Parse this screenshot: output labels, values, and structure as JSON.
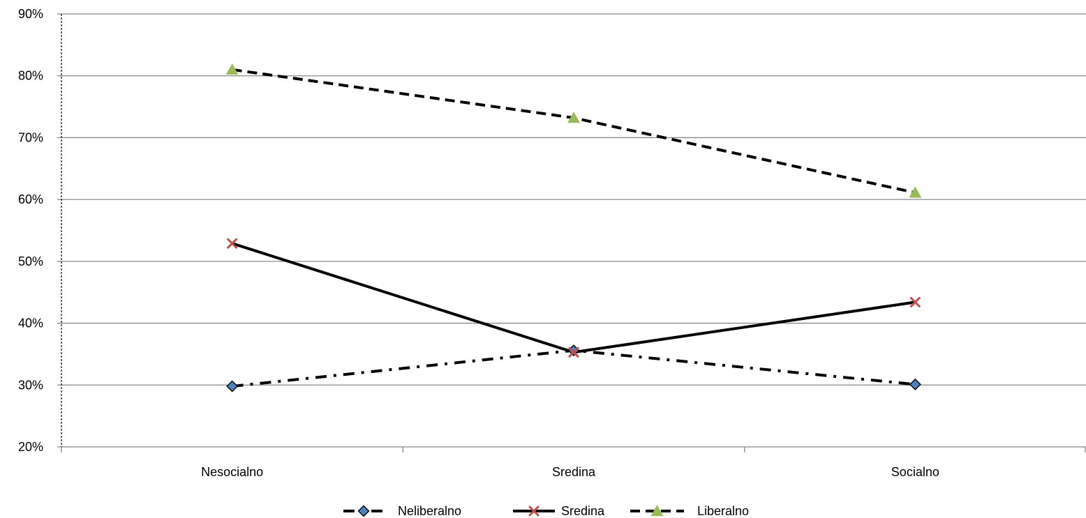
{
  "chart_data": {
    "type": "line",
    "title": "",
    "xlabel": "",
    "ylabel": "",
    "categories": [
      "Nesocialno",
      "Sredina",
      "Socialno"
    ],
    "ylim": [
      0.2,
      0.9
    ],
    "yticks": [
      "20%",
      "30%",
      "40%",
      "50%",
      "60%",
      "70%",
      "80%",
      "90%"
    ],
    "grid": "horizontal",
    "legend": "bottom",
    "series": [
      {
        "name": "Neliberalno",
        "values": [
          0.298,
          0.356,
          0.301
        ],
        "color": "#4f81bd",
        "marker": "diamond",
        "line": "dash-dot"
      },
      {
        "name": "Sredina",
        "values": [
          0.529,
          0.353,
          0.434
        ],
        "color": "#c0504d",
        "marker": "x",
        "line": "solid"
      },
      {
        "name": "Liberalno",
        "values": [
          0.81,
          0.732,
          0.611
        ],
        "color": "#9bbb59",
        "marker": "triangle",
        "line": "dashed"
      }
    ]
  }
}
